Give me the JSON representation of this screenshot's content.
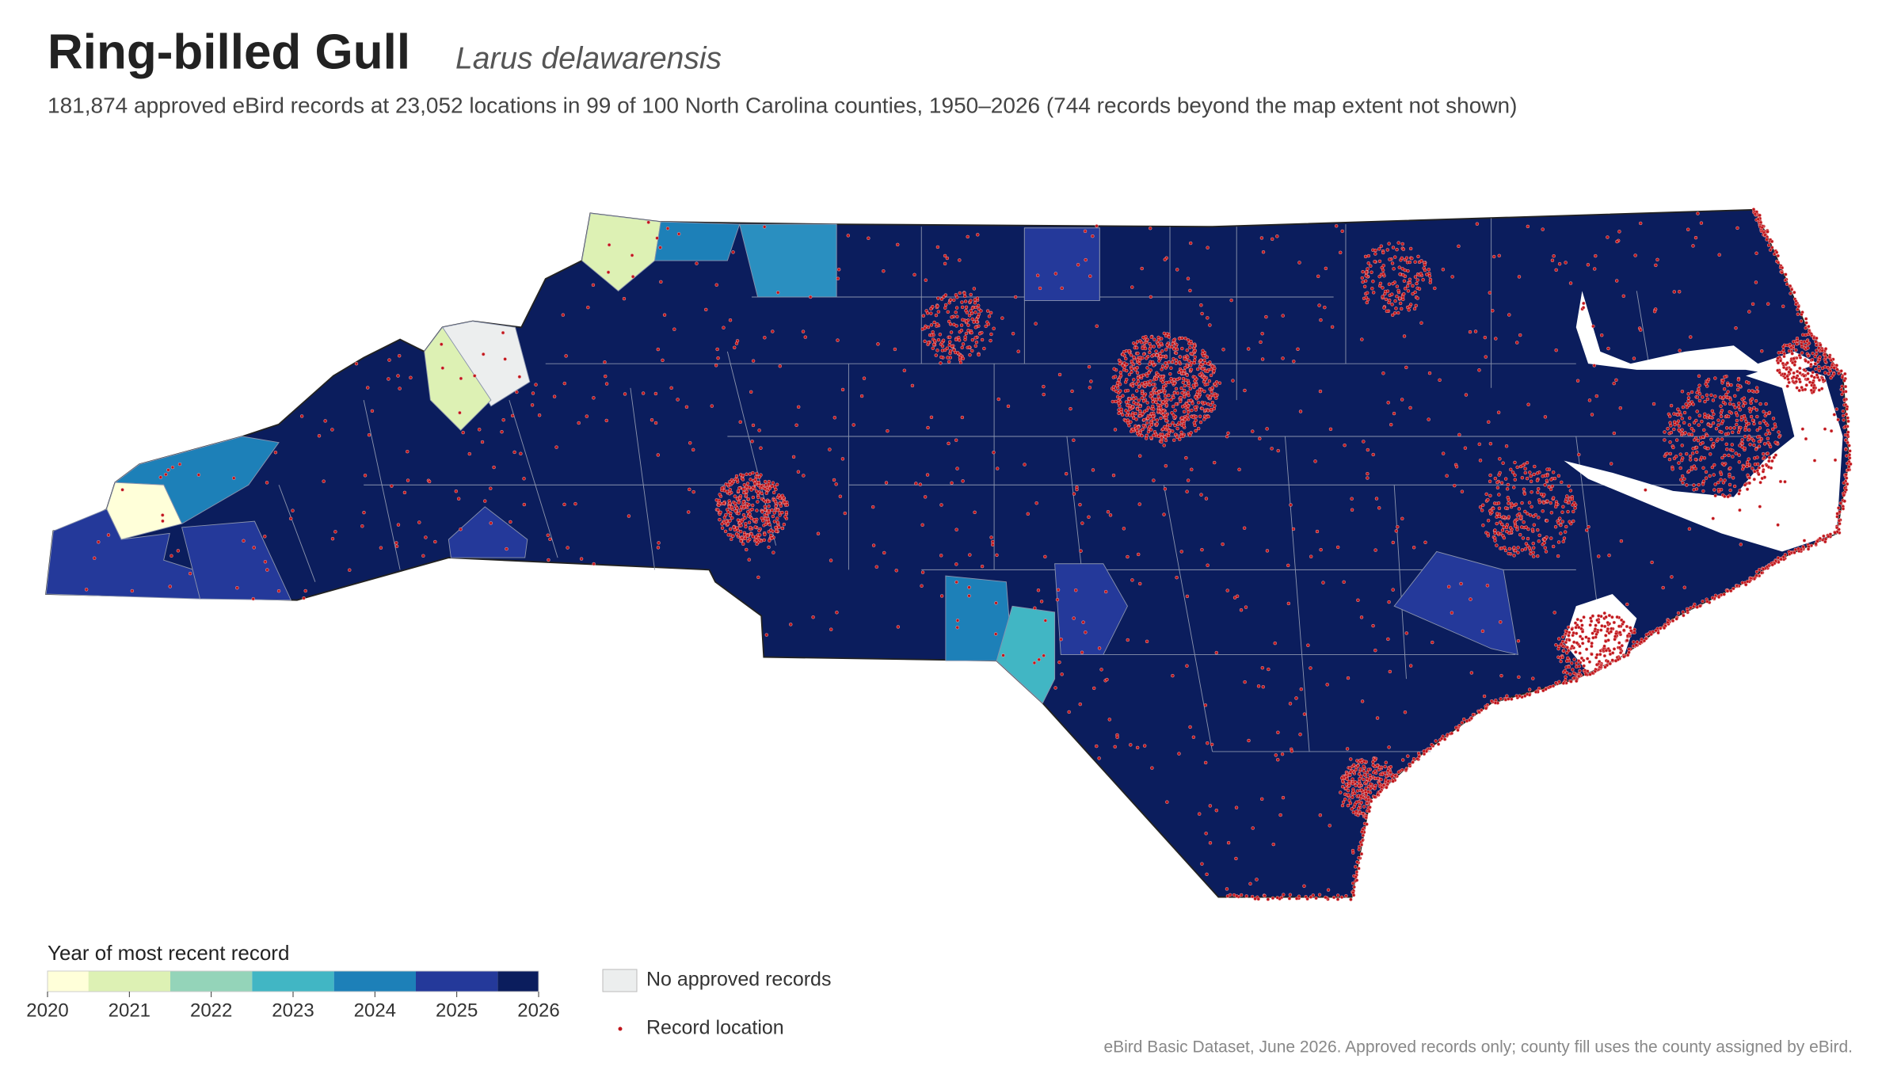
{
  "header": {
    "title": "Ring-billed Gull",
    "scientific_name": "Larus delawarensis",
    "summary": "181,874 approved eBird records at 23,052 locations in 99 of 100 North Carolina counties, 1950–2026 (744 records beyond the map extent not shown)"
  },
  "legend": {
    "title": "Year of most recent record",
    "ticks": [
      2020,
      2021,
      2022,
      2023,
      2024,
      2025,
      2026
    ],
    "colors": [
      "#ffffd9",
      "#ddf1b4",
      "#94d4b9",
      "#41b6c4",
      "#1d80b8",
      "#24399a",
      "#0b1d5d"
    ],
    "no_records": "No approved records",
    "no_records_color": "#eceeee",
    "record_location": "Record location",
    "record_color": "#c0161c"
  },
  "source": "eBird Basic Dataset, June 2026. Approved records only; county fill uses the county assigned by eBird."
}
